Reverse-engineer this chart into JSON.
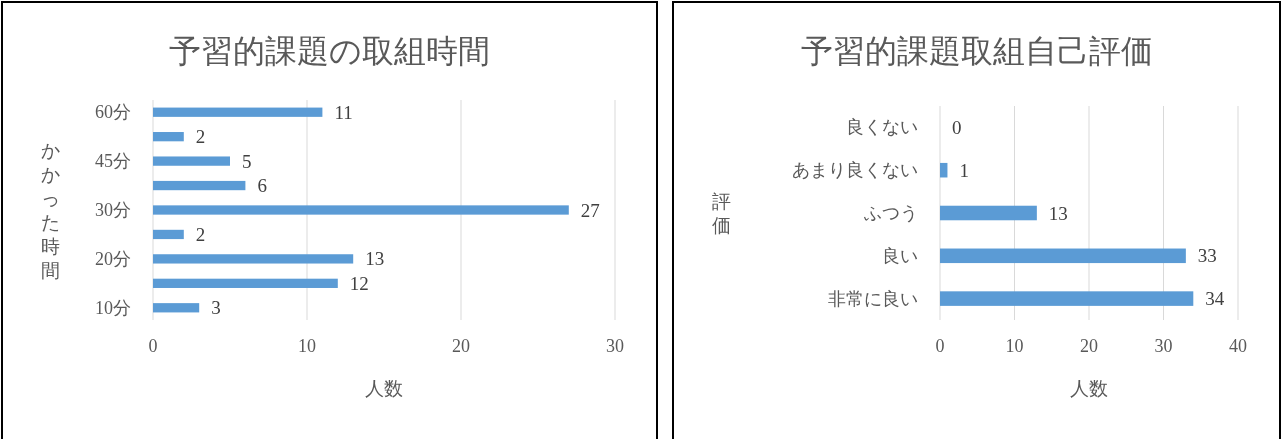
{
  "chart_data": [
    {
      "type": "bar",
      "orientation": "horizontal",
      "title": "予習的課題の取組時間",
      "xlabel": "人数",
      "ylabel": "かかった時間",
      "categories": [
        "60分",
        null,
        "45分",
        null,
        "30分",
        null,
        "20分",
        null,
        "10分"
      ],
      "values": [
        11,
        2,
        5,
        6,
        27,
        2,
        13,
        12,
        3
      ],
      "color": "#5b9bd5",
      "xlim": [
        0,
        30
      ],
      "xticks": [
        0,
        10,
        20,
        30
      ],
      "grid": "x",
      "data_labels": true
    },
    {
      "type": "bar",
      "orientation": "horizontal",
      "title": "予習的課題取組自己評価",
      "xlabel": "人数",
      "ylabel": "評価",
      "categories": [
        "良くない",
        "あまり良くない",
        "ふつう",
        "良い",
        "非常に良い"
      ],
      "values": [
        0,
        1,
        13,
        33,
        34
      ],
      "color": "#5b9bd5",
      "xlim": [
        0,
        40
      ],
      "xticks": [
        0,
        10,
        20,
        30,
        40
      ],
      "grid": "x",
      "data_labels": true
    }
  ]
}
